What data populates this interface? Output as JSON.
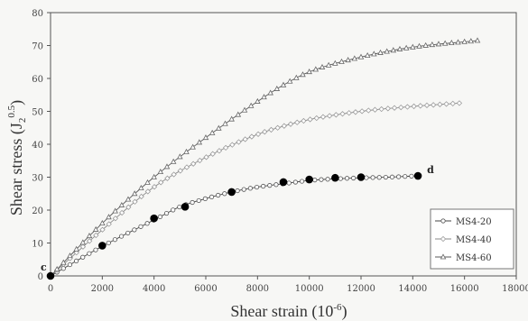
{
  "chart_data": {
    "type": "line",
    "xlabel_text": "Shear strain (10",
    "xlabel_sup": "-6",
    "xlabel_close": ")",
    "ylabel_text": "Shear stress (J",
    "ylabel_sub": "2",
    "ylabel_sup": "0.5",
    "ylabel_close": ")",
    "xlim": [
      0,
      18000
    ],
    "ylim": [
      0,
      80
    ],
    "xticks": [
      0,
      2000,
      4000,
      6000,
      8000,
      10000,
      12000,
      14000,
      16000,
      18000
    ],
    "yticks": [
      0,
      10,
      20,
      30,
      40,
      50,
      60,
      70,
      80
    ],
    "grid": false,
    "legend_position": "bottom-right",
    "series": [
      {
        "name": "MS4-20",
        "marker": "circle",
        "x": [
          0,
          2000,
          4000,
          5000,
          6000,
          7000,
          8000,
          9000,
          10000,
          11000,
          12000,
          13000,
          14200
        ],
        "y": [
          0,
          9,
          17,
          21,
          23.5,
          25.5,
          27,
          28,
          29,
          29.5,
          29.8,
          30,
          30.4
        ]
      },
      {
        "name": "MS4-40",
        "marker": "diamond",
        "x": [
          0,
          2000,
          4000,
          6000,
          8000,
          9000,
          10000,
          12000,
          14000,
          15800
        ],
        "y": [
          0,
          14,
          27,
          36,
          43,
          45.5,
          47.5,
          50,
          51.5,
          52.5
        ]
      },
      {
        "name": "MS4-60",
        "marker": "triangle",
        "x": [
          0,
          2000,
          4000,
          6000,
          8000,
          9000,
          10000,
          12000,
          14000,
          16500
        ],
        "y": [
          0,
          16,
          30,
          42,
          53,
          58,
          62,
          66.5,
          69.5,
          71.5
        ]
      }
    ],
    "key_points": {
      "x": [
        0,
        2000,
        4000,
        5200,
        7000,
        9000,
        10000,
        11000,
        12000,
        14200
      ],
      "y": [
        0,
        9.2,
        17.5,
        21,
        25.5,
        28.5,
        29.3,
        29.8,
        30,
        30.4
      ]
    },
    "annotations": [
      {
        "text": "c",
        "x": 0,
        "y": 0
      },
      {
        "text": "d",
        "x": 14200,
        "y": 30.4
      }
    ]
  }
}
